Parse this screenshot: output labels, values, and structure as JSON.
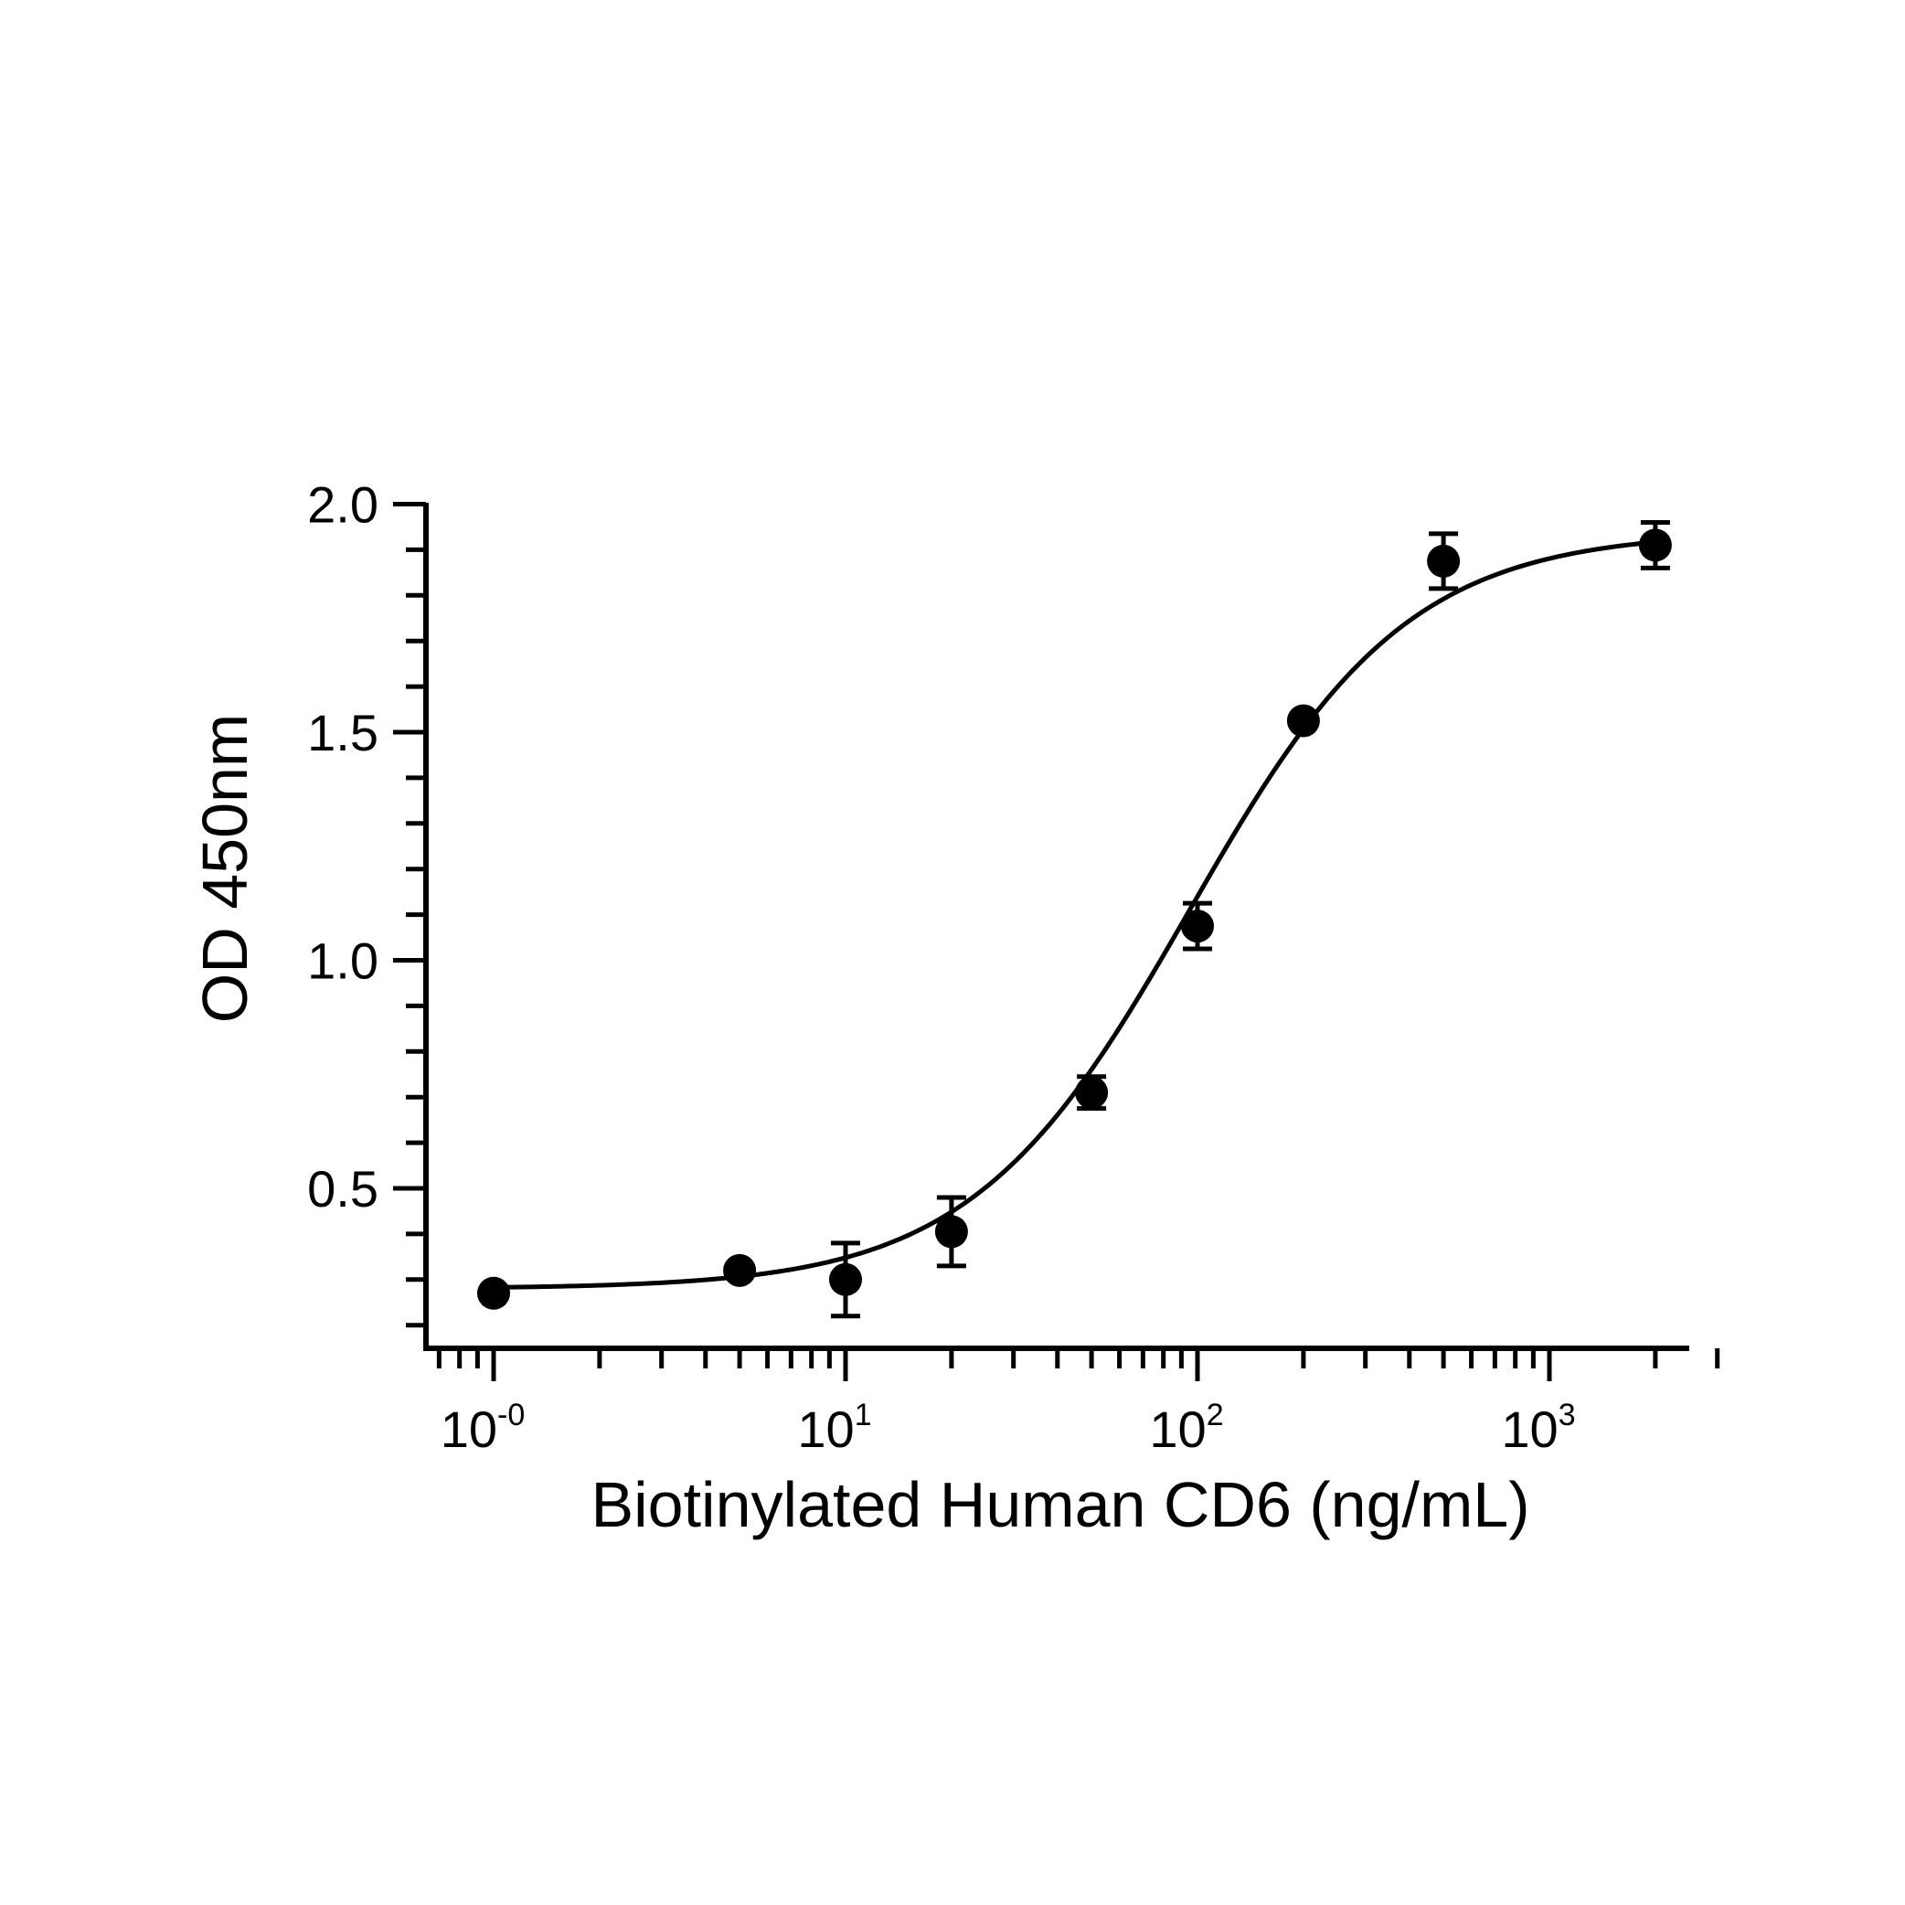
{
  "chart_data": {
    "type": "scatter",
    "title": "",
    "xlabel": "Biotinylated Human CD6 (ng/mL)",
    "ylabel": "OD 450nm",
    "x_scale": "log",
    "xlim": [
      0.7,
      3000
    ],
    "ylim": [
      0.17,
      2.0
    ],
    "x_ticks": [
      {
        "base": "10",
        "exp": "-0",
        "value": 1
      },
      {
        "base": "10",
        "exp": "1",
        "value": 10
      },
      {
        "base": "10",
        "exp": "2",
        "value": 100
      },
      {
        "base": "10",
        "exp": "3",
        "value": 1000
      }
    ],
    "y_ticks": [
      "0.5",
      "1.0",
      "1.5",
      "2.0"
    ],
    "grid": false,
    "series": [
      {
        "points": [
          {
            "x": 1,
            "y": 0.27,
            "err": 0.0
          },
          {
            "x": 5,
            "y": 0.32,
            "err": 0.0
          },
          {
            "x": 10,
            "y": 0.3,
            "err": 0.08
          },
          {
            "x": 20,
            "y": 0.405,
            "err": 0.075
          },
          {
            "x": 50,
            "y": 0.71,
            "err": 0.035
          },
          {
            "x": 100,
            "y": 1.075,
            "err": 0.05
          },
          {
            "x": 200,
            "y": 1.525,
            "err": 0.0
          },
          {
            "x": 500,
            "y": 1.875,
            "err": 0.06
          },
          {
            "x": 2000,
            "y": 1.91,
            "err": 0.05
          }
        ],
        "fit": "4PL",
        "color": "#000000"
      }
    ]
  }
}
